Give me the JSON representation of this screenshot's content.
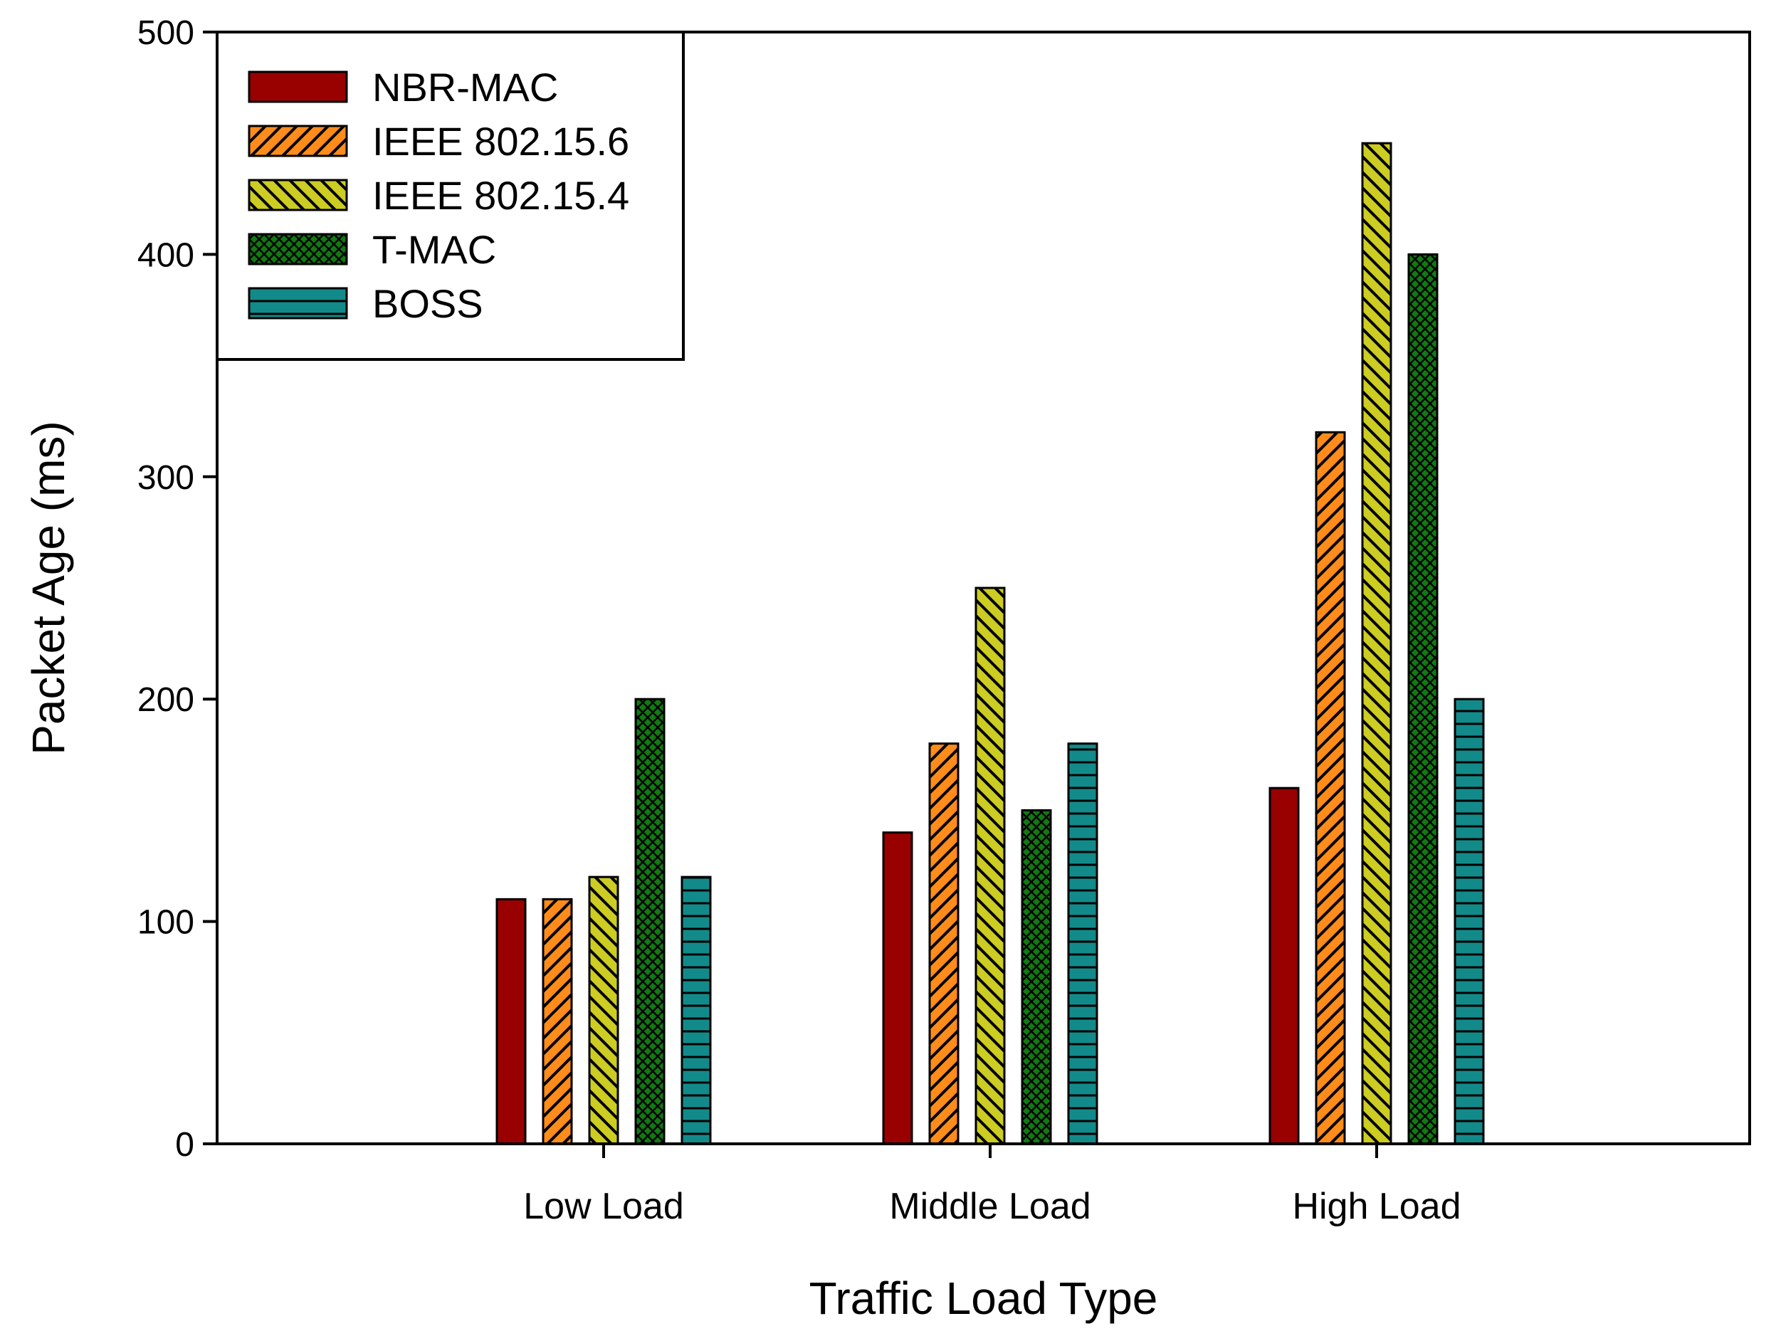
{
  "chart_data": {
    "type": "bar",
    "title": "",
    "xlabel": "Traffic Load Type",
    "ylabel": "Packet Age (ms)",
    "categories": [
      "Low Load",
      "Middle Load",
      "High Load"
    ],
    "ylim": [
      0,
      500
    ],
    "yticks": [
      0,
      100,
      200,
      300,
      400,
      500
    ],
    "grid": false,
    "legend_position": "top-left",
    "series": [
      {
        "name": "NBR-MAC",
        "values": [
          110,
          140,
          160
        ],
        "color": "#990000",
        "pattern": "solid"
      },
      {
        "name": "IEEE 802.15.6",
        "values": [
          110,
          180,
          320
        ],
        "color": "#FF8C1A",
        "pattern": "diagonal-up"
      },
      {
        "name": "IEEE 802.15.4",
        "values": [
          120,
          250,
          450
        ],
        "color": "#CCCC22",
        "pattern": "diagonal-down"
      },
      {
        "name": "T-MAC",
        "values": [
          200,
          150,
          400
        ],
        "color": "#117A11",
        "pattern": "crosshatch"
      },
      {
        "name": "BOSS",
        "values": [
          120,
          180,
          200
        ],
        "color": "#138A8A",
        "pattern": "horizontal"
      }
    ]
  }
}
